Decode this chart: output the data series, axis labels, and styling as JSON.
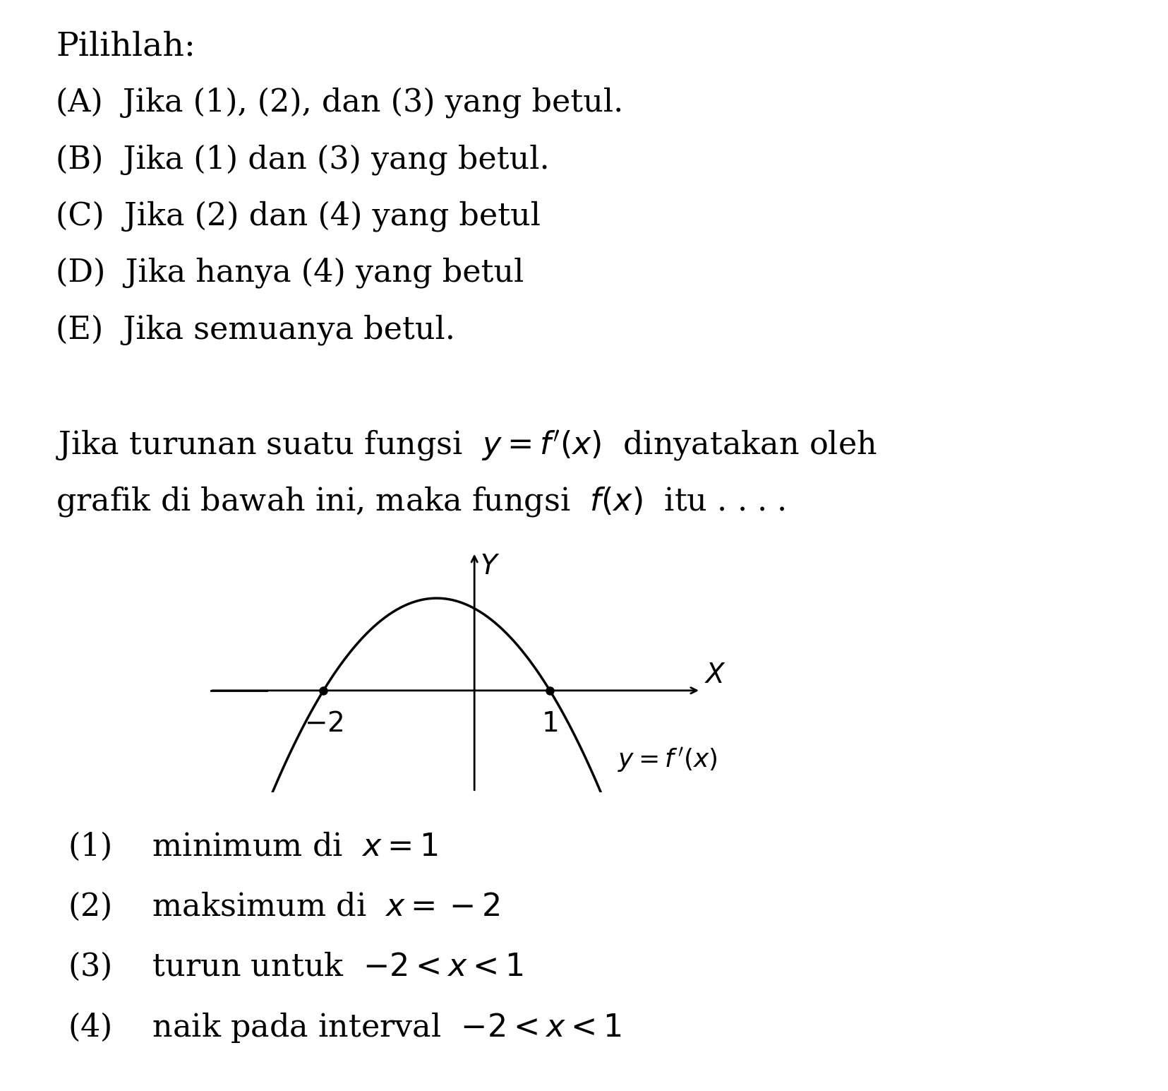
{
  "title": "Pilihlah:",
  "options": [
    "(A)  Jika (1), (2), dan (3) yang betul.",
    "(B)  Jika (1) dan (3) yang betul.",
    "(C)  Jika (2) dan (4) yang betul",
    "(D)  Jika hanya (4) yang betul",
    "(E)  Jika semuanya betul."
  ],
  "problem_line1": "Jika turunan suatu fungsi  $y = f'(x)$  dinyatakan oleh",
  "problem_line2": "grafik di bawah ini, maka fungsi  $f(x)$  itu . . . .",
  "statements": [
    "(1)    minimum di  $x = 1$",
    "(2)    maksimum di  $x = -2$",
    "(3)    turun untuk  $-2 < x < 1$",
    "(4)    naik pada interval  $-2 < x < 1$"
  ],
  "bg_color": "#ffffff",
  "text_color": "#000000",
  "font_size_title": 34,
  "font_size_options": 32,
  "font_size_problem": 32,
  "font_size_statements": 32,
  "font_size_axis_labels": 28,
  "font_size_tick_labels": 28,
  "font_size_curve_label": 26
}
